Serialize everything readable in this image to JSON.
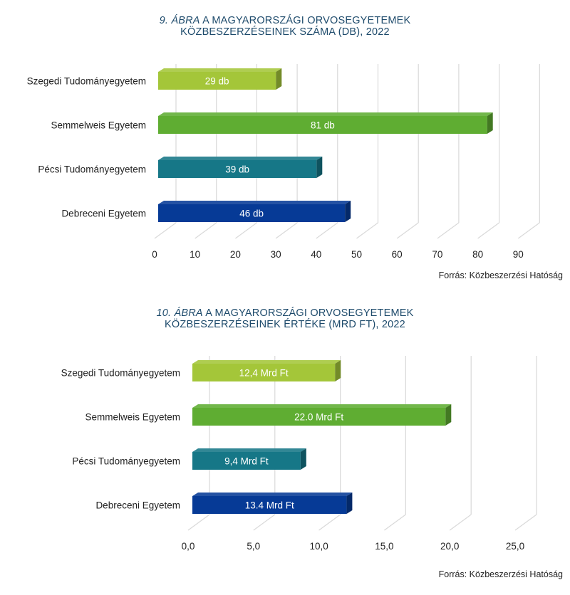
{
  "chart_data": [
    {
      "type": "bar",
      "orientation": "horizontal",
      "title_number": "9. ÁBRA",
      "title_line1": "A MAGYARORSZÁGI ORVOSEGYETEMEK",
      "title_line2": "KÖZBESZERZÉSEINEK SZÁMA (DB), 2022",
      "categories": [
        "Szegedi Tudományegyetem",
        "Semmelweis Egyetem",
        "Pécsi Tudományegyetem",
        "Debreceni Egyetem"
      ],
      "values": [
        29,
        81,
        39,
        46
      ],
      "data_labels": [
        "29 db",
        "81 db",
        "39 db",
        "46 db"
      ],
      "colors": [
        "#a4c639",
        "#5fad32",
        "#167787",
        "#063a96"
      ],
      "xticks": [
        "0",
        "10",
        "20",
        "30",
        "40",
        "50",
        "60",
        "70",
        "80",
        "90"
      ],
      "xlim": [
        0,
        90
      ],
      "source": "Forrás: Közbeszerzési Hatóság"
    },
    {
      "type": "bar",
      "orientation": "horizontal",
      "title_number": "10. ÁBRA",
      "title_line1": "A MAGYARORSZÁGI ORVOSEGYETEMEK",
      "title_line2": "KÖZBESZERZÉSEINEK ÉRTÉKE (MRD FT), 2022",
      "categories": [
        "Szegedi Tudományegyetem",
        "Semmelweis Egyetem",
        "Pécsi Tudományegyetem",
        "Debreceni Egyetem"
      ],
      "values": [
        12.4,
        22.0,
        9.4,
        13.4
      ],
      "data_labels": [
        "12,4 Mrd Ft",
        "22.0 Mrd Ft",
        "9,4 Mrd Ft",
        "13.4 Mrd Ft"
      ],
      "colors": [
        "#a4c639",
        "#5fad32",
        "#167787",
        "#063a96"
      ],
      "xticks": [
        "0,0",
        "5,0",
        "10,0",
        "15,0",
        "20,0",
        "25,0"
      ],
      "xlim": [
        0,
        25
      ],
      "source": "Forrás: Közbeszerzési Hatóság"
    }
  ]
}
